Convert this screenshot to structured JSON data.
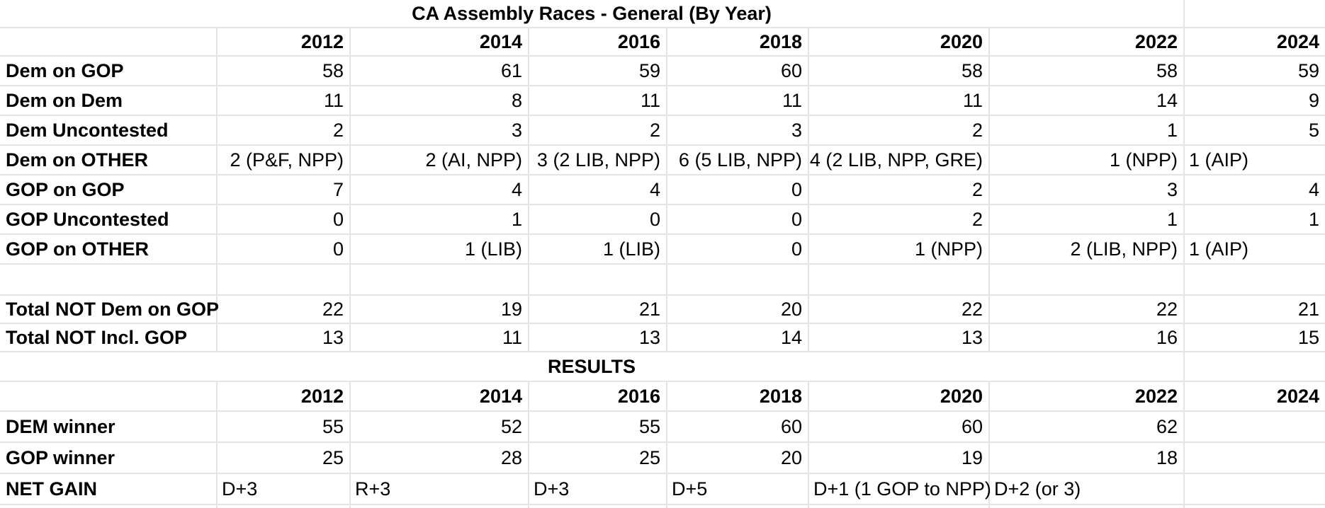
{
  "sheet": {
    "title": "CA Assembly Races - General (By Year)",
    "results_header": "RESULTS",
    "years": [
      "2012",
      "2014",
      "2016",
      "2018",
      "2020",
      "2022",
      "2024"
    ],
    "races": {
      "rows": [
        {
          "label": "Dem on GOP",
          "values": [
            "58",
            "61",
            "59",
            "60",
            "58",
            "58",
            "59"
          ],
          "left_cols": []
        },
        {
          "label": "Dem on Dem",
          "values": [
            "11",
            "8",
            "11",
            "11",
            "11",
            "14",
            "9"
          ],
          "left_cols": []
        },
        {
          "label": "Dem Uncontested",
          "values": [
            "2",
            "3",
            "2",
            "3",
            "2",
            "1",
            "5"
          ],
          "left_cols": []
        },
        {
          "label": "Dem on OTHER",
          "values": [
            "2 (P&F, NPP)",
            "2 (AI, NPP)",
            "3 (2 LIB, NPP)",
            "6 (5 LIB, NPP)",
            "4 (2 LIB, NPP, GRE)",
            "1 (NPP)",
            "1 (AIP)"
          ],
          "left_cols": [
            6
          ]
        },
        {
          "label": "GOP on GOP",
          "values": [
            "7",
            "4",
            "4",
            "0",
            "2",
            "3",
            "4"
          ],
          "left_cols": []
        },
        {
          "label": "GOP Uncontested",
          "values": [
            "0",
            "1",
            "0",
            "0",
            "2",
            "1",
            "1"
          ],
          "left_cols": []
        },
        {
          "label": "GOP on OTHER",
          "values": [
            "0",
            "1 (LIB)",
            "1 (LIB)",
            "0",
            "1 (NPP)",
            "2 (LIB, NPP)",
            "1 (AIP)"
          ],
          "left_cols": [
            6
          ]
        },
        {
          "label": "",
          "values": [
            "",
            "",
            "",
            "",
            "",
            "",
            ""
          ],
          "left_cols": []
        },
        {
          "label": "Total NOT Dem on GOP",
          "values": [
            "22",
            "19",
            "21",
            "20",
            "22",
            "22",
            "21"
          ],
          "left_cols": []
        },
        {
          "label": "Total NOT Incl. GOP",
          "values": [
            "13",
            "11",
            "13",
            "14",
            "13",
            "16",
            "15"
          ],
          "left_cols": []
        }
      ]
    },
    "results": {
      "rows": [
        {
          "label": "DEM winner",
          "values": [
            "55",
            "52",
            "55",
            "60",
            "60",
            "62",
            ""
          ],
          "left_cols": []
        },
        {
          "label": "GOP winner",
          "values": [
            "25",
            "28",
            "25",
            "20",
            "19",
            "18",
            ""
          ],
          "left_cols": []
        },
        {
          "label": "NET GAIN",
          "values": [
            "D+3",
            "R+3",
            "D+3",
            "D+5",
            "D+1 (1 GOP to NPP)",
            "D+2 (or 3)",
            ""
          ],
          "left_cols": [
            0,
            1,
            2,
            3,
            4,
            5,
            6
          ]
        }
      ]
    },
    "colors": {
      "gridline": "#e3e3e3",
      "background": "#ffffff",
      "text": "#000000"
    }
  }
}
